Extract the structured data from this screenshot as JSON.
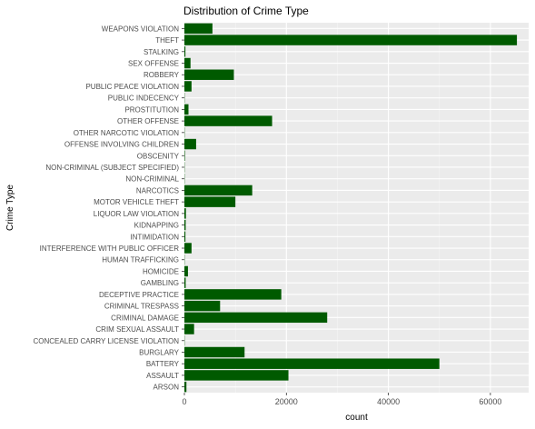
{
  "chart_data": {
    "type": "bar",
    "orientation": "horizontal",
    "title": "Distribution of Crime Type",
    "xlabel": "count",
    "ylabel": "Crime Type",
    "xlim": [
      0,
      67500
    ],
    "x_ticks": [
      0,
      20000,
      40000,
      60000
    ],
    "x_tick_labels": [
      "0",
      "20000",
      "40000",
      "60000"
    ],
    "grid": true,
    "legend": "none",
    "bar_color": "#005a00",
    "panel_color": "#ebebeb",
    "categories": [
      "ARSON",
      "ASSAULT",
      "BATTERY",
      "BURGLARY",
      "CONCEALED CARRY LICENSE VIOLATION",
      "CRIM SEXUAL ASSAULT",
      "CRIMINAL DAMAGE",
      "CRIMINAL TRESPASS",
      "DECEPTIVE PRACTICE",
      "GAMBLING",
      "HOMICIDE",
      "HUMAN TRAFFICKING",
      "INTERFERENCE WITH PUBLIC OFFICER",
      "INTIMIDATION",
      "KIDNAPPING",
      "LIQUOR LAW VIOLATION",
      "MOTOR VEHICLE THEFT",
      "NARCOTICS",
      "NON-CRIMINAL",
      "NON-CRIMINAL (SUBJECT SPECIFIED)",
      "OBSCENITY",
      "OFFENSE INVOLVING CHILDREN",
      "OTHER NARCOTIC VIOLATION",
      "OTHER OFFENSE",
      "PROSTITUTION",
      "PUBLIC INDECENCY",
      "PUBLIC PEACE VIOLATION",
      "ROBBERY",
      "SEX OFFENSE",
      "STALKING",
      "THEFT",
      "WEAPONS VIOLATION"
    ],
    "values": [
      400,
      20400,
      50000,
      11800,
      40,
      1900,
      28000,
      7000,
      19000,
      250,
      700,
      20,
      1400,
      200,
      250,
      300,
      10000,
      13300,
      30,
      10,
      100,
      2300,
      15,
      17200,
      800,
      15,
      1400,
      9700,
      1200,
      200,
      65200,
      5500
    ]
  }
}
